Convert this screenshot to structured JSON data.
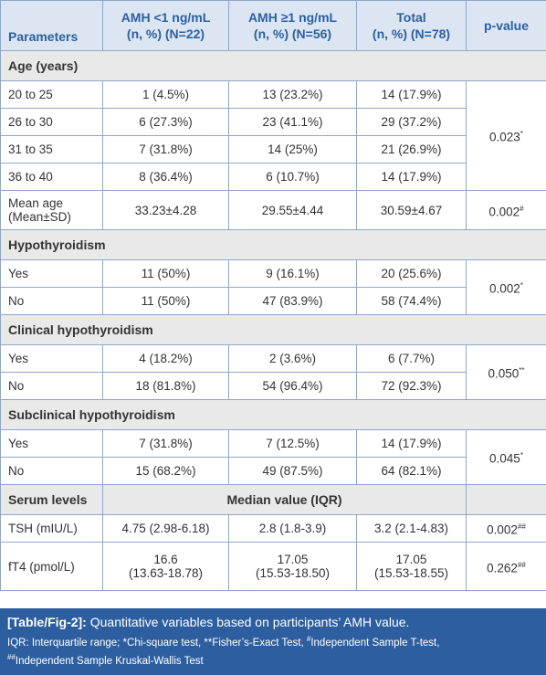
{
  "header": {
    "columns": [
      [
        "Parameters"
      ],
      [
        "AMH <1 ng/mL",
        "(n, %) (N=22)"
      ],
      [
        "AMH ≥1 ng/mL",
        "(n, %) (N=56)"
      ],
      [
        "Total",
        "(n, %) (N=78)"
      ],
      [
        "p-value"
      ]
    ]
  },
  "sections": [
    {
      "title": "Age (years)",
      "groups": [
        {
          "rows": [
            {
              "label": [
                "20 to 25"
              ],
              "cells": [
                [
                  "1 (4.5%)"
                ],
                [
                  "13 (23.2%)"
                ],
                [
                  "14 (17.9%)"
                ]
              ]
            },
            {
              "label": [
                "26 to 30"
              ],
              "cells": [
                [
                  "6 (27.3%)"
                ],
                [
                  "23 (41.1%)"
                ],
                [
                  "29 (37.2%)"
                ]
              ]
            },
            {
              "label": [
                "31 to 35"
              ],
              "cells": [
                [
                  "7 (31.8%)"
                ],
                [
                  "14 (25%)"
                ],
                [
                  "21 (26.9%)"
                ]
              ]
            },
            {
              "label": [
                "36 to 40"
              ],
              "cells": [
                [
                  "8 (36.4%)"
                ],
                [
                  "6 (10.7%)"
                ],
                [
                  "14 (17.9%)"
                ]
              ]
            }
          ],
          "p": {
            "text": "0.023",
            "sup": "*"
          }
        },
        {
          "rows": [
            {
              "label": [
                "Mean age",
                "(Mean±SD)"
              ],
              "cells": [
                [
                  "33.23±4.28"
                ],
                [
                  "29.55±4.44"
                ],
                [
                  "30.59±4.67"
                ]
              ]
            }
          ],
          "p": {
            "text": "0.002",
            "sup": "#"
          }
        }
      ]
    },
    {
      "title": "Hypothyroidism",
      "groups": [
        {
          "rows": [
            {
              "label": [
                "Yes"
              ],
              "cells": [
                [
                  "11 (50%)"
                ],
                [
                  "9 (16.1%)"
                ],
                [
                  "20 (25.6%)"
                ]
              ]
            },
            {
              "label": [
                "No"
              ],
              "cells": [
                [
                  "11 (50%)"
                ],
                [
                  "47 (83.9%)"
                ],
                [
                  "58 (74.4%)"
                ]
              ]
            }
          ],
          "p": {
            "text": "0.002",
            "sup": "*"
          }
        }
      ]
    },
    {
      "title": "Clinical hypothyroidism",
      "groups": [
        {
          "rows": [
            {
              "label": [
                "Yes"
              ],
              "cells": [
                [
                  "4 (18.2%)"
                ],
                [
                  "2 (3.6%)"
                ],
                [
                  "6 (7.7%)"
                ]
              ]
            },
            {
              "label": [
                "No"
              ],
              "cells": [
                [
                  "18 (81.8%)"
                ],
                [
                  "54 (96.4%)"
                ],
                [
                  "72 (92.3%)"
                ]
              ]
            }
          ],
          "p": {
            "text": "0.050",
            "sup": "**"
          }
        }
      ]
    },
    {
      "title": "Subclinical hypothyroidism",
      "groups": [
        {
          "rows": [
            {
              "label": [
                "Yes"
              ],
              "cells": [
                [
                  "7 (31.8%)"
                ],
                [
                  "7 (12.5%)"
                ],
                [
                  "14 (17.9%)"
                ]
              ]
            },
            {
              "label": [
                "No"
              ],
              "cells": [
                [
                  "15 (68.2%)"
                ],
                [
                  "49 (87.5%)"
                ],
                [
                  "64 (82.1%)"
                ]
              ]
            }
          ],
          "p": {
            "text": "0.045",
            "sup": "*"
          }
        }
      ]
    },
    {
      "title": "Serum levels",
      "subtitle": "Median value (IQR)",
      "groups": [
        {
          "rows": [
            {
              "label": [
                "TSH (mIU/L)"
              ],
              "cells": [
                [
                  "4.75 (2.98-6.18)"
                ],
                [
                  "2.8 (1.8-3.9)"
                ],
                [
                  "3.2 (2.1-4.83)"
                ]
              ]
            }
          ],
          "p": {
            "text": "0.002",
            "sup": "##"
          }
        },
        {
          "rows": [
            {
              "label": [
                "fT4 (pmol/L)"
              ],
              "cells": [
                [
                  "16.6",
                  "(13.63-18.78)"
                ],
                [
                  "17.05",
                  "(15.53-18.50)"
                ],
                [
                  "17.05",
                  "(15.53-18.55)"
                ]
              ]
            }
          ],
          "p": {
            "text": "0.262",
            "sup": "##"
          }
        }
      ]
    }
  ],
  "footer": {
    "caption_label": "[Table/Fig-2]:",
    "caption": "Quantitative variables based on participants’ AMH value.",
    "note_1": "IQR: Interquartile range; *Chi-square test, **Fisher’s-Exact Test, ",
    "note_sup_1": "#",
    "note_2": "Independent Sample T-test,",
    "note_sup_2": "##",
    "note_3": "Independent Sample Kruskal-Wallis Test"
  }
}
